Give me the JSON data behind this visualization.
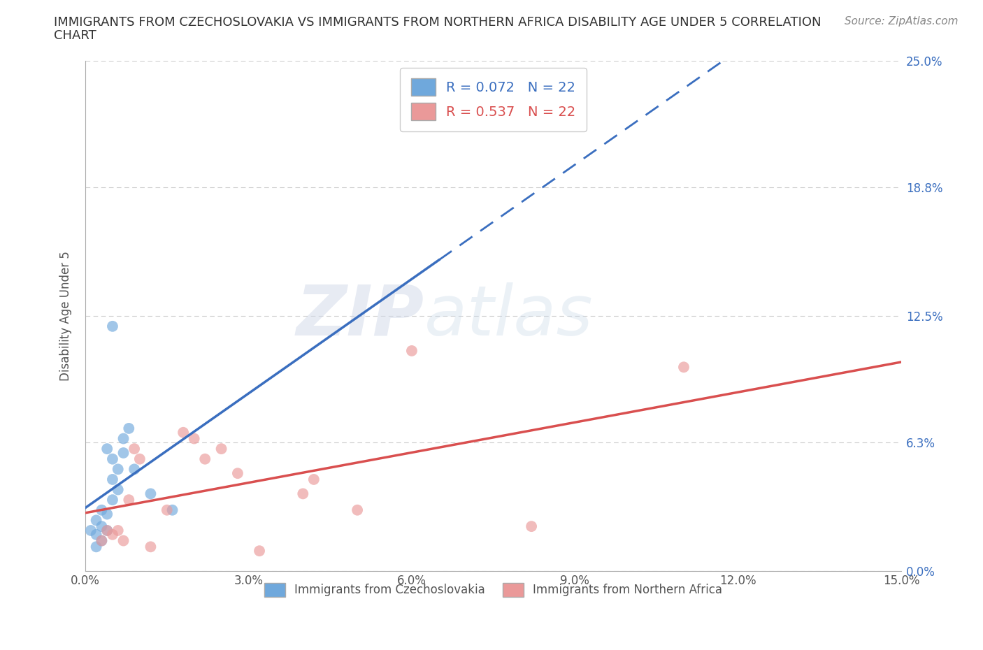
{
  "title_line1": "IMMIGRANTS FROM CZECHOSLOVAKIA VS IMMIGRANTS FROM NORTHERN AFRICA DISABILITY AGE UNDER 5 CORRELATION",
  "title_line2": "CHART",
  "source_text": "Source: ZipAtlas.com",
  "ylabel": "Disability Age Under 5",
  "xlim": [
    0.0,
    0.15
  ],
  "ylim": [
    0.0,
    0.25
  ],
  "xtick_labels": [
    "0.0%",
    "3.0%",
    "6.0%",
    "9.0%",
    "12.0%",
    "15.0%"
  ],
  "xtick_values": [
    0.0,
    0.03,
    0.06,
    0.09,
    0.12,
    0.15
  ],
  "ytick_labels": [
    "0.0%",
    "6.3%",
    "12.5%",
    "18.8%",
    "25.0%"
  ],
  "ytick_values": [
    0.0,
    0.063,
    0.125,
    0.188,
    0.25
  ],
  "blue_R": 0.072,
  "blue_N": 22,
  "pink_R": 0.537,
  "pink_N": 22,
  "blue_color": "#6fa8dc",
  "pink_color": "#ea9999",
  "blue_line_color": "#3a6ebf",
  "pink_line_color": "#d94f4f",
  "background_color": "#ffffff",
  "grid_color": "#cccccc",
  "legend_label_blue": "Immigrants from Czechoslovakia",
  "legend_label_pink": "Immigrants from Northern Africa",
  "blue_scatter_x": [
    0.001,
    0.002,
    0.002,
    0.002,
    0.003,
    0.003,
    0.003,
    0.004,
    0.004,
    0.004,
    0.005,
    0.005,
    0.005,
    0.006,
    0.006,
    0.007,
    0.007,
    0.008,
    0.009,
    0.012,
    0.016,
    0.005
  ],
  "blue_scatter_y": [
    0.02,
    0.025,
    0.018,
    0.012,
    0.03,
    0.022,
    0.015,
    0.028,
    0.02,
    0.06,
    0.055,
    0.045,
    0.035,
    0.05,
    0.04,
    0.065,
    0.058,
    0.07,
    0.05,
    0.038,
    0.03,
    0.12
  ],
  "pink_scatter_x": [
    0.003,
    0.004,
    0.005,
    0.006,
    0.007,
    0.008,
    0.009,
    0.01,
    0.012,
    0.015,
    0.018,
    0.02,
    0.022,
    0.025,
    0.028,
    0.032,
    0.04,
    0.042,
    0.05,
    0.06,
    0.082,
    0.11
  ],
  "pink_scatter_y": [
    0.015,
    0.02,
    0.018,
    0.02,
    0.015,
    0.035,
    0.06,
    0.055,
    0.012,
    0.03,
    0.068,
    0.065,
    0.055,
    0.06,
    0.048,
    0.01,
    0.038,
    0.045,
    0.03,
    0.108,
    0.022,
    0.1
  ],
  "watermark_ZIP": "ZIP",
  "watermark_atlas": "atlas"
}
